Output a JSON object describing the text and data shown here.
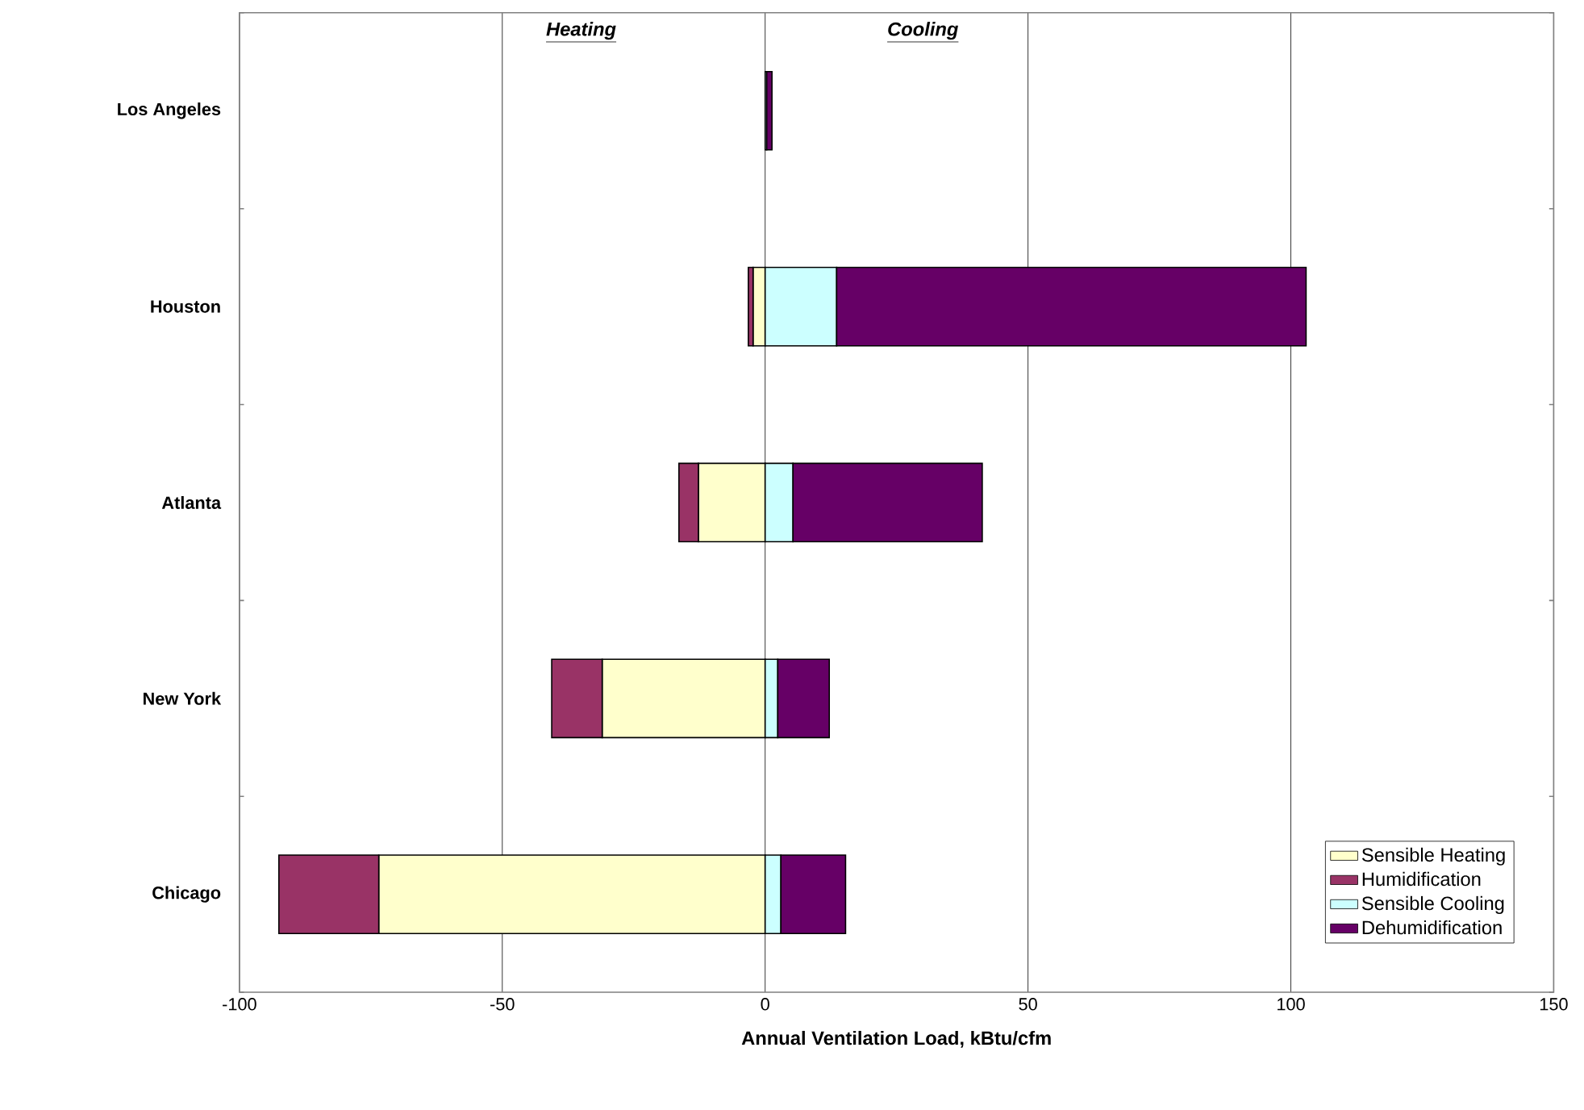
{
  "chart_data": {
    "type": "bar",
    "orientation": "horizontal",
    "stacked": true,
    "categories": [
      "Los Angeles",
      "Houston",
      "Atlanta",
      "New York",
      "Chicago"
    ],
    "series": [
      {
        "name": "Sensible Heating",
        "color": "#ffffcc",
        "values": [
          0,
          -2.3,
          -12.7,
          -31,
          -73.5
        ]
      },
      {
        "name": "Humidification",
        "color": "#993366",
        "values": [
          0,
          -0.9,
          -3.7,
          -9.6,
          -19
        ]
      },
      {
        "name": "Sensible Cooling",
        "color": "#ccffff",
        "values": [
          0.3,
          13.6,
          5.3,
          2.4,
          3
        ]
      },
      {
        "name": "Dehumidification",
        "color": "#660066",
        "values": [
          1,
          89.3,
          36,
          9.8,
          12.3
        ]
      }
    ],
    "xlabel": "Annual Ventilation Load, kBtu/cfm",
    "xlim": [
      -100,
      150
    ],
    "xticks": [
      -100,
      -50,
      0,
      50,
      100,
      150
    ],
    "grid": "x",
    "legend": "bottom right",
    "annotations": [
      "Heating",
      "Cooling"
    ]
  }
}
